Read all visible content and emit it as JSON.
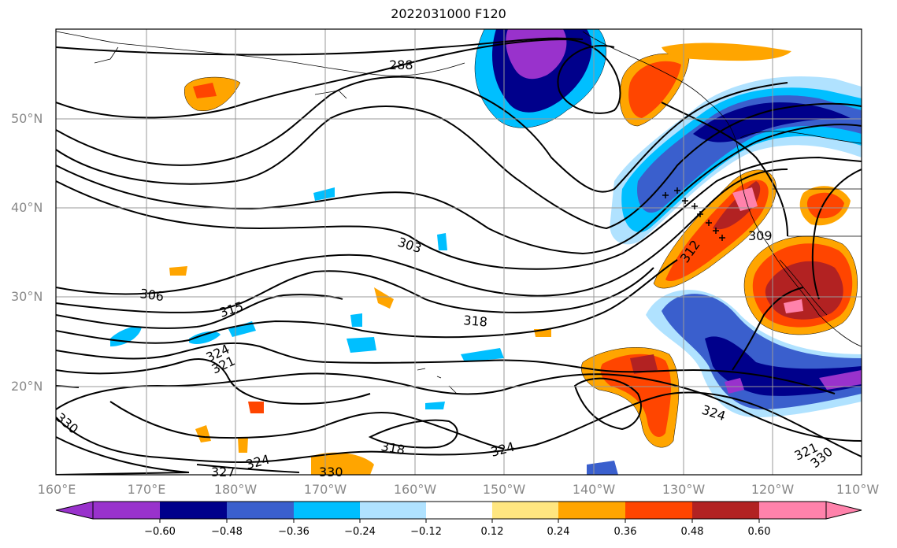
{
  "title": "2022031000 F120",
  "lat_labels": [
    "50°N",
    "40°N",
    "30°N",
    "20°N"
  ],
  "lon_labels": [
    "160°E",
    "170°E",
    "180°W",
    "170°W",
    "160°W",
    "150°W",
    "140°W",
    "130°W",
    "120°W",
    "110°W"
  ],
  "contour_labels": [
    "288",
    "303",
    "306",
    "315",
    "318",
    "324",
    "321",
    "309",
    "312",
    "330",
    "324",
    "318",
    "324",
    "327",
    "330",
    "324",
    "321",
    "330"
  ],
  "colorbar": {
    "tick_labels": [
      "−0.60",
      "−0.48",
      "−0.36",
      "−0.24",
      "−0.12",
      "0.12",
      "0.24",
      "0.36",
      "0.48",
      "0.60"
    ],
    "colors": [
      "#9932cc",
      "#00008b",
      "#3a5fcd",
      "#00bfff",
      "#b0e2ff",
      "#ffffff",
      "#ffe680",
      "#ffa500",
      "#ff4500",
      "#b22222",
      "#ff82ab"
    ]
  }
}
